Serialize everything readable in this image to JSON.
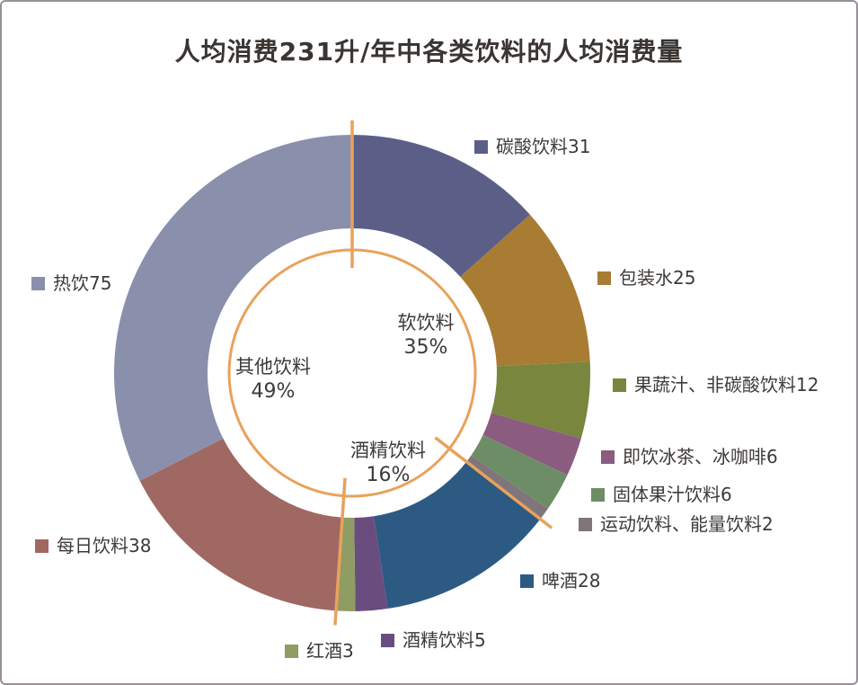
{
  "title": "人均消费231升/年中各类饮料的人均消费量",
  "chart_data": {
    "type": "pie",
    "donut": true,
    "total": 231,
    "unit": "升/年",
    "start_angle_deg": 0,
    "direction": "clockwise",
    "divider_color": "#e8a25b",
    "segments": [
      {
        "label": "碳酸饮料",
        "value": 31,
        "color": "#5b5f88",
        "legend": "碳酸饮料31"
      },
      {
        "label": "包装水",
        "value": 25,
        "color": "#a87c33",
        "legend": "包装水25"
      },
      {
        "label": "果蔬汁、非碳酸饮料",
        "value": 12,
        "color": "#79863e",
        "legend": "果蔬汁、非碳酸饮料12"
      },
      {
        "label": "即饮冰茶、冰咖啡",
        "value": 6,
        "color": "#8b5b80",
        "legend": "即饮冰茶、冰咖啡6"
      },
      {
        "label": "固体果汁饮料",
        "value": 6,
        "color": "#6d8d66",
        "legend": "固体果汁饮料6"
      },
      {
        "label": "运动饮料、能量饮料",
        "value": 2,
        "color": "#80757b",
        "legend": "运动饮料、能量饮料2"
      },
      {
        "label": "啤酒",
        "value": 28,
        "color": "#2d5a83",
        "legend": "啤酒28"
      },
      {
        "label": "酒精饮料",
        "value": 5,
        "color": "#6a4d7e",
        "legend": "酒精饮料5"
      },
      {
        "label": "红酒",
        "value": 3,
        "color": "#8f9c63",
        "legend": "红酒3"
      },
      {
        "label": "每日饮料",
        "value": 38,
        "color": "#a06862",
        "legend": "每日饮料38"
      },
      {
        "label": "热饮",
        "value": 75,
        "color": "#8a8fac",
        "legend": "热饮75"
      }
    ],
    "groups": [
      {
        "label": "软饮料",
        "percent": "35%",
        "start_index": 0
      },
      {
        "label": "酒精饮料",
        "percent": "16%",
        "start_index": 6
      },
      {
        "label": "其他饮料",
        "percent": "49%",
        "start_index": 9
      }
    ]
  }
}
